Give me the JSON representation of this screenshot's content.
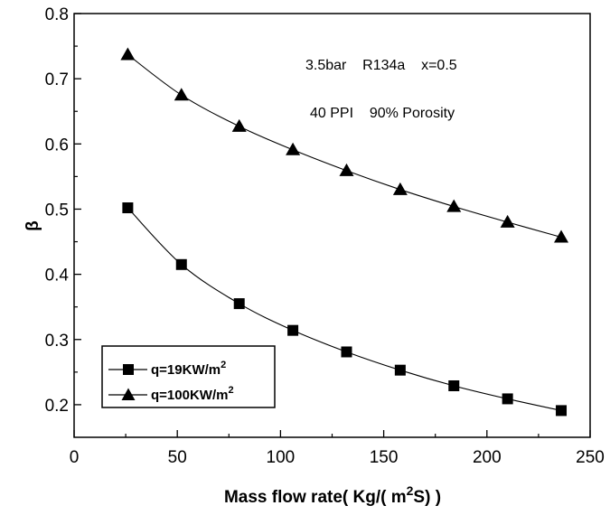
{
  "chart_data": {
    "type": "line",
    "xlabel": {
      "main": "Mass flow rate( Kg/( m",
      "sup": "2",
      "tail": "S) )"
    },
    "ylabel": "β",
    "xlim": [
      0,
      250
    ],
    "ylim": [
      0.15,
      0.8
    ],
    "xticks": [
      0,
      50,
      100,
      150,
      200,
      250
    ],
    "xtick_labels": [
      "0",
      "50",
      "100",
      "150",
      "200",
      "250"
    ],
    "yticks": [
      0.2,
      0.3,
      0.4,
      0.5,
      0.6,
      0.7,
      0.8
    ],
    "ytick_labels": [
      "0.2",
      "0.3",
      "0.4",
      "0.5",
      "0.6",
      "0.7",
      "0.8"
    ],
    "grid": false,
    "legend_position": "bottom-left",
    "annotations": [
      "3.5bar    R134a    x=0.5",
      "40 PPI    90% Porosity"
    ],
    "series": [
      {
        "legend": {
          "main": "q=19KW/m",
          "sup": "2"
        },
        "marker": "square",
        "x": [
          26,
          52,
          80,
          106,
          132,
          158,
          184,
          210,
          236
        ],
        "y": [
          0.502,
          0.415,
          0.355,
          0.314,
          0.281,
          0.253,
          0.229,
          0.209,
          0.191
        ]
      },
      {
        "legend": {
          "main": "q=100KW/m",
          "sup": "2"
        },
        "marker": "triangle",
        "x": [
          26,
          52,
          80,
          106,
          132,
          158,
          184,
          210,
          236
        ],
        "y": [
          0.737,
          0.675,
          0.627,
          0.591,
          0.559,
          0.53,
          0.504,
          0.48,
          0.457
        ]
      }
    ]
  }
}
